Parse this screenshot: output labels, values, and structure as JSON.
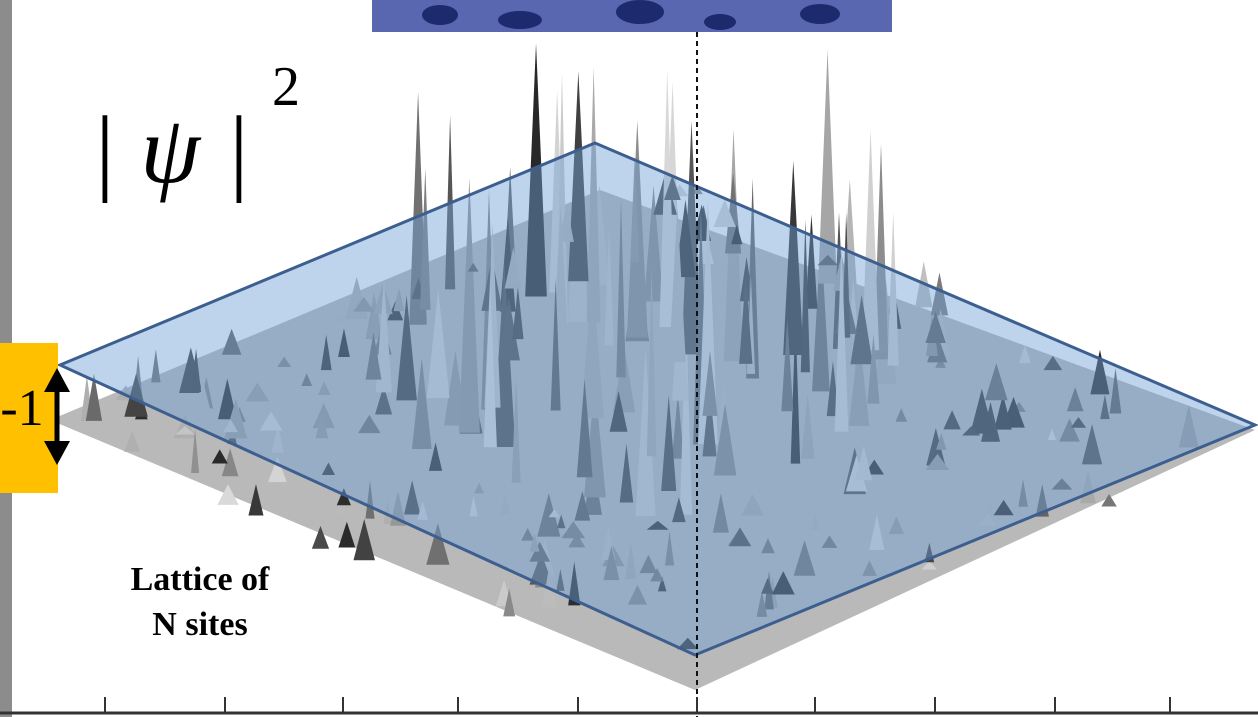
{
  "formula": {
    "base": "| ψ |",
    "exponent": "2"
  },
  "marker_label": "-1",
  "lattice_label": [
    "Lattice of",
    "N sites"
  ]
}
